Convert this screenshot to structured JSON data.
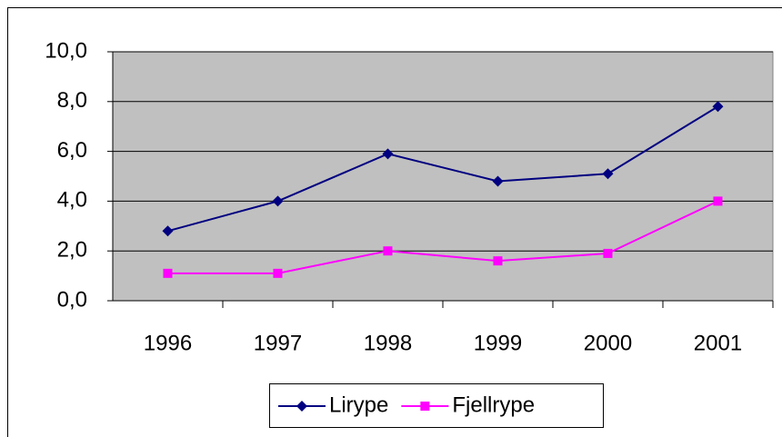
{
  "chart_data": {
    "type": "line",
    "categories": [
      "1996",
      "1997",
      "1998",
      "1999",
      "2000",
      "2001"
    ],
    "series": [
      {
        "name": "Lirype",
        "color": "#000080",
        "marker": "diamond",
        "values": [
          2.8,
          4.0,
          5.9,
          4.8,
          5.1,
          7.8
        ]
      },
      {
        "name": "Fjellrype",
        "color": "#ff00ff",
        "marker": "square",
        "values": [
          1.1,
          1.1,
          2.0,
          1.6,
          1.9,
          4.0
        ]
      }
    ],
    "ylim": [
      0,
      10
    ],
    "yticks": [
      {
        "value": 0,
        "label": "0,0"
      },
      {
        "value": 2,
        "label": "2,0"
      },
      {
        "value": 4,
        "label": "4,0"
      },
      {
        "value": 6,
        "label": "6,0"
      },
      {
        "value": 8,
        "label": "8,0"
      },
      {
        "value": 10,
        "label": "10,0"
      }
    ],
    "grid": true,
    "legend": "bottom"
  }
}
